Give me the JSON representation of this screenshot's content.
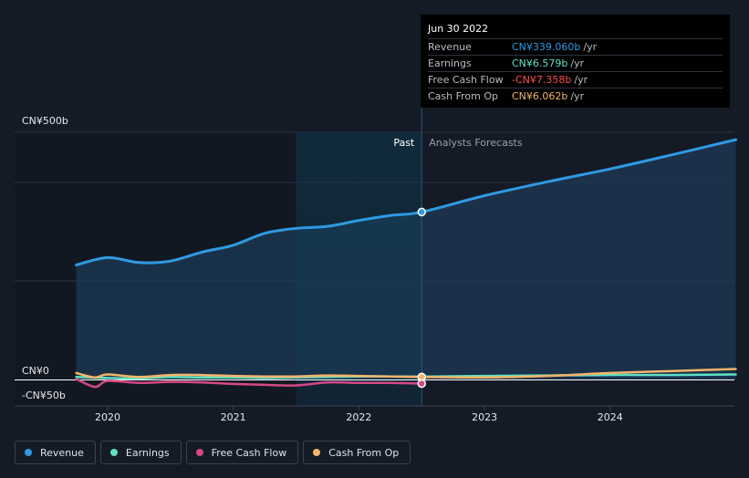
{
  "chart_data": {
    "type": "line",
    "x_unit": "year",
    "y_unit": "CN¥ billions",
    "ylim": [
      -50,
      500
    ],
    "xlim": [
      2019.55,
      2025.05
    ],
    "y_tick_labels": [
      {
        "value": 500,
        "label": "CN¥500b"
      },
      {
        "value": 0,
        "label": "CN¥0"
      },
      {
        "value": -50,
        "label": "-CN¥50b"
      }
    ],
    "x_tick_labels": [
      {
        "value": 2020,
        "label": "2020"
      },
      {
        "value": 2021,
        "label": "2021"
      },
      {
        "value": 2022,
        "label": "2022"
      },
      {
        "value": 2023,
        "label": "2023"
      },
      {
        "value": 2024,
        "label": "2024"
      }
    ],
    "past_label": "Past",
    "forecast_label": "Analysts Forecasts",
    "divider_x": 2022.5,
    "highlight_start_x": 2021.5,
    "series": [
      {
        "name": "Revenue",
        "color": "#2f9ae3",
        "area": true,
        "x": [
          2019.75,
          2020.0,
          2020.25,
          2020.5,
          2020.75,
          2021.0,
          2021.25,
          2021.5,
          2021.75,
          2022.0,
          2022.25,
          2022.5,
          2023.0,
          2023.5,
          2024.0,
          2024.5,
          2025.0
        ],
        "y": [
          232,
          247,
          237,
          240,
          258,
          272,
          296,
          306,
          310,
          322,
          332,
          339,
          372,
          400,
          426,
          455,
          485
        ]
      },
      {
        "name": "Earnings",
        "color": "#5fe0c2",
        "x": [
          2019.75,
          2020.0,
          2020.25,
          2020.5,
          2020.75,
          2021.0,
          2021.25,
          2021.5,
          2021.75,
          2022.0,
          2022.25,
          2022.5,
          2023.0,
          2023.5,
          2024.0,
          2024.5,
          2025.0
        ],
        "y": [
          6,
          4,
          3,
          6,
          5,
          5,
          4,
          5,
          6,
          7,
          7,
          6.6,
          8,
          9,
          10,
          10,
          11
        ]
      },
      {
        "name": "Free Cash Flow",
        "color": "#d44887",
        "x": [
          2019.75,
          2019.9,
          2020.0,
          2020.25,
          2020.5,
          2020.75,
          2021.0,
          2021.25,
          2021.5,
          2021.75,
          2022.0,
          2022.25,
          2022.5
        ],
        "y": [
          2,
          -14,
          -2,
          -6,
          -4,
          -5,
          -8,
          -10,
          -11,
          -5,
          -6,
          -6,
          -7.4
        ]
      },
      {
        "name": "Cash From Op",
        "color": "#f3b46b",
        "x": [
          2019.75,
          2019.9,
          2020.0,
          2020.25,
          2020.5,
          2020.75,
          2021.0,
          2021.25,
          2021.5,
          2021.75,
          2022.0,
          2022.25,
          2022.5,
          2023.0,
          2023.5,
          2024.0,
          2024.5,
          2025.0
        ],
        "y": [
          14,
          5,
          11,
          6,
          10,
          10,
          8,
          7,
          7,
          9,
          8,
          7,
          6.1,
          5,
          8,
          14,
          18,
          22
        ]
      }
    ]
  },
  "tooltip": {
    "date": "Jun 30 2022",
    "rows": [
      {
        "label": "Revenue",
        "value": "CN¥339.060b",
        "unit": "/yr",
        "color": "#2f9ae3"
      },
      {
        "label": "Earnings",
        "value": "CN¥6.579b",
        "unit": "/yr",
        "color": "#5fe0c2"
      },
      {
        "label": "Free Cash Flow",
        "value": "-CN¥7.358b",
        "unit": "/yr",
        "color": "#ff4d4d"
      },
      {
        "label": "Cash From Op",
        "value": "CN¥6.062b",
        "unit": "/yr",
        "color": "#f3b46b"
      }
    ]
  },
  "legend": [
    {
      "label": "Revenue",
      "color": "#2f9ae3"
    },
    {
      "label": "Earnings",
      "color": "#5fe0c2"
    },
    {
      "label": "Free Cash Flow",
      "color": "#d44887"
    },
    {
      "label": "Cash From Op",
      "color": "#f3b46b"
    }
  ]
}
